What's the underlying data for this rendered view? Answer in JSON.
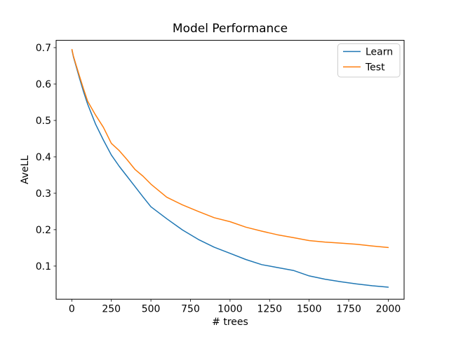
{
  "chart_data": {
    "type": "line",
    "title": "Model Performance",
    "xlabel": "# trees",
    "ylabel": "AveLL",
    "xlim": [
      -99,
      2100
    ],
    "ylim": [
      0.009,
      0.72
    ],
    "xticks": [
      0,
      250,
      500,
      750,
      1000,
      1250,
      1500,
      1750,
      2000
    ],
    "yticks": [
      0.1,
      0.2,
      0.3,
      0.4,
      0.5,
      0.6,
      0.7
    ],
    "grid": false,
    "legend_position": "upper right",
    "background_color": "#ffffff",
    "series": [
      {
        "name": "Learn",
        "color": "#1f77b4",
        "x": [
          1,
          10,
          25,
          50,
          75,
          100,
          150,
          200,
          250,
          300,
          350,
          400,
          450,
          500,
          600,
          700,
          800,
          900,
          1000,
          1100,
          1200,
          1300,
          1400,
          1500,
          1600,
          1700,
          1800,
          1900,
          2000
        ],
        "y": [
          0.693,
          0.675,
          0.652,
          0.614,
          0.578,
          0.545,
          0.49,
          0.446,
          0.405,
          0.374,
          0.346,
          0.318,
          0.29,
          0.263,
          0.23,
          0.199,
          0.173,
          0.152,
          0.135,
          0.118,
          0.104,
          0.096,
          0.088,
          0.073,
          0.064,
          0.057,
          0.051,
          0.046,
          0.042
        ]
      },
      {
        "name": "Test",
        "color": "#ff7f0e",
        "x": [
          1,
          10,
          25,
          50,
          75,
          100,
          150,
          200,
          250,
          300,
          350,
          400,
          450,
          500,
          600,
          700,
          800,
          900,
          1000,
          1100,
          1200,
          1300,
          1400,
          1500,
          1600,
          1700,
          1800,
          1900,
          2000
        ],
        "y": [
          0.695,
          0.677,
          0.655,
          0.62,
          0.586,
          0.553,
          0.515,
          0.481,
          0.437,
          0.417,
          0.392,
          0.365,
          0.347,
          0.325,
          0.289,
          0.268,
          0.25,
          0.233,
          0.222,
          0.207,
          0.196,
          0.186,
          0.178,
          0.17,
          0.166,
          0.163,
          0.16,
          0.155,
          0.151
        ]
      }
    ]
  }
}
